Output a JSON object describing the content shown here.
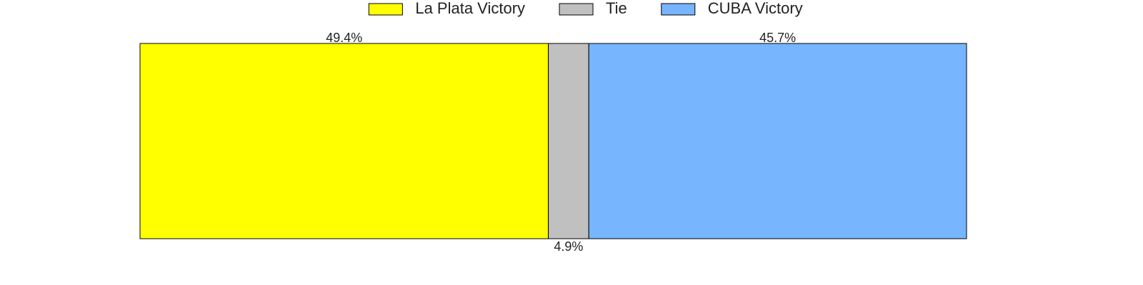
{
  "chart_data": {
    "type": "bar",
    "orientation": "horizontal",
    "stacked": true,
    "xlim": [
      0,
      100
    ],
    "series": [
      {
        "name": "La Plata Victory",
        "color": "#ffff00",
        "values": [
          49.4
        ],
        "value_labels": [
          "49.4%"
        ]
      },
      {
        "name": "Tie",
        "color": "#c0c0c0",
        "values": [
          4.9
        ],
        "value_labels": [
          "4.9%"
        ]
      },
      {
        "name": "CUBA Victory",
        "color": "#77b5fe",
        "values": [
          45.7
        ],
        "value_labels": [
          "45.7%"
        ]
      }
    ]
  }
}
